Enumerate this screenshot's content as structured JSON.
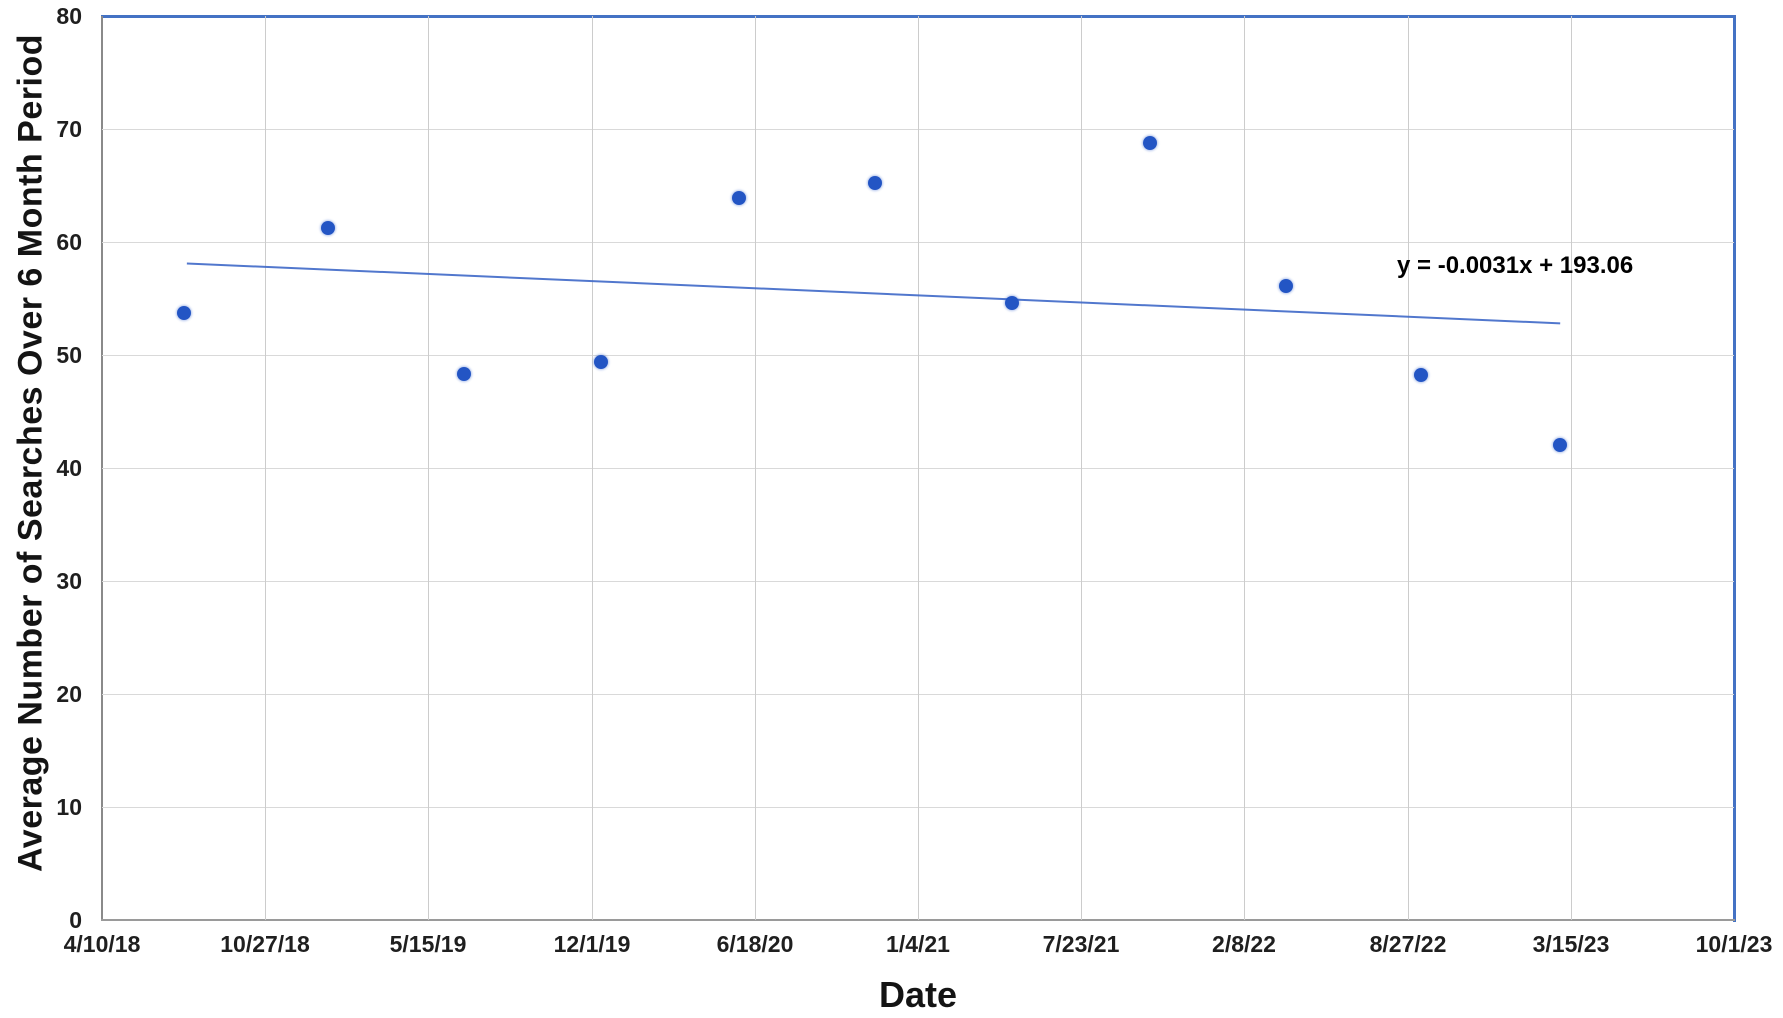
{
  "chart_data": {
    "type": "scatter",
    "title": "",
    "xlabel": "Date",
    "ylabel": "Average Number of Searches Over 6 Month Period",
    "grid": true,
    "ylim": [
      0,
      80
    ],
    "y_ticks": [
      0,
      10,
      20,
      30,
      40,
      50,
      60,
      70,
      80
    ],
    "x_axis": {
      "tick_labels": [
        "4/10/18",
        "10/27/18",
        "5/15/19",
        "12/1/19",
        "6/18/20",
        "1/4/21",
        "7/23/21",
        "2/8/22",
        "8/27/22",
        "3/15/23",
        "10/1/23"
      ],
      "tick_interval_days": 200,
      "range_days": [
        0,
        2000
      ]
    },
    "points": [
      {
        "approx_date": "7/19/18",
        "x_days": 100,
        "y": 53.7
      },
      {
        "approx_date": "1/12/19",
        "x_days": 277,
        "y": 61.2
      },
      {
        "approx_date": "6/28/19",
        "x_days": 444,
        "y": 48.3
      },
      {
        "approx_date": "12/12/19",
        "x_days": 611,
        "y": 49.4
      },
      {
        "approx_date": "5/30/20",
        "x_days": 781,
        "y": 63.9
      },
      {
        "approx_date": "11/12/20",
        "x_days": 947,
        "y": 65.2
      },
      {
        "approx_date": "4/30/21",
        "x_days": 1115,
        "y": 54.6
      },
      {
        "approx_date": "10/15/21",
        "x_days": 1284,
        "y": 68.8
      },
      {
        "approx_date": "3/31/22",
        "x_days": 1451,
        "y": 56.1
      },
      {
        "approx_date": "9/13/22",
        "x_days": 1617,
        "y": 48.2
      },
      {
        "approx_date": "3/2/23",
        "x_days": 1787,
        "y": 42.0
      }
    ],
    "trendline": {
      "equation_label": "y = -0.0031x + 193.06",
      "x1_days": 104,
      "y1": 58.1,
      "x2_days": 1787,
      "y2": 52.8,
      "label_anchor": {
        "x_days": 1587,
        "y": 59.1
      }
    },
    "colors": {
      "point": "#2355c4",
      "trendline": "#3e68c8",
      "frame_blue": "#4472c4",
      "axis_gray": "#8a8a8a",
      "gridline": "#d9d9d9",
      "text": "#1f1f1f"
    }
  }
}
